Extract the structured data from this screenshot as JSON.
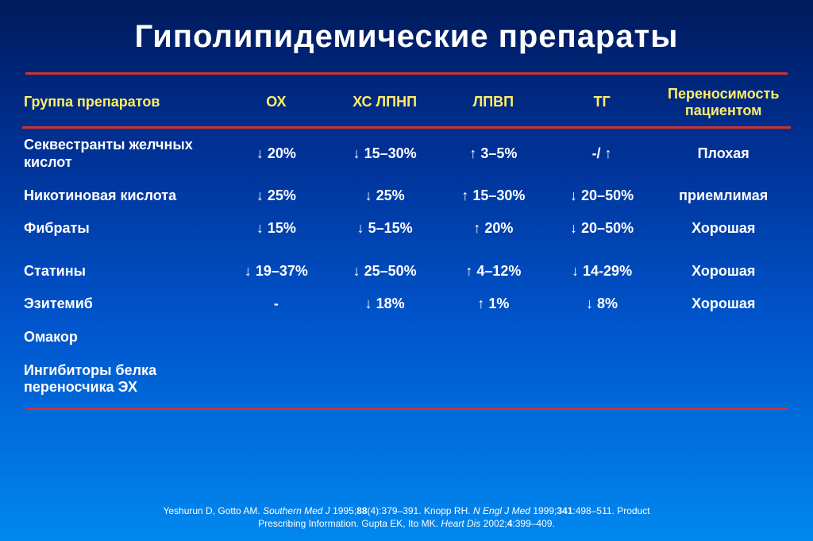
{
  "title": "Гиполипидемические  препараты",
  "headers": {
    "group": "Группа препаратов",
    "ox": "ОХ",
    "ldl": "ХС ЛПНП",
    "hdl": "ЛПВП",
    "tg": "ТГ",
    "tol": "Переносимость пациентом"
  },
  "rows": [
    {
      "group": "Секвестранты желчных кислот",
      "ox": "↓ 20%",
      "ldl": "↓ 15–30%",
      "hdl": "↑ 3–5%",
      "tg": "-/ ↑",
      "tol": "Плохая"
    },
    {
      "group": "Никотиновая кислота",
      "ox": "↓ 25%",
      "ldl": "↓ 25%",
      "hdl": "↑ 15–30%",
      "tg": "↓ 20–50%",
      "tol": "приемлимая"
    },
    {
      "group": "Фибраты",
      "ox": "↓ 15%",
      "ldl": "↓ 5–15%",
      "hdl": "↑ 20%",
      "tg": "↓ 20–50%",
      "tol": "Хорошая"
    },
    {
      "group": "Статины",
      "ox": "↓ 19–37%",
      "ldl": "↓ 25–50%",
      "hdl": "↑ 4–12%",
      "tg": "↓ 14-29%",
      "tol": "Хорошая"
    },
    {
      "group": "Эзитемиб",
      "ox": "-",
      "ldl": "↓ 18%",
      "hdl": "↑ 1%",
      "tg": "↓ 8%",
      "tol": "Хорошая"
    },
    {
      "group": "Омакор",
      "ox": "",
      "ldl": "",
      "hdl": "",
      "tg": "",
      "tol": ""
    },
    {
      "group": "Ингибиторы белка переносчика ЭХ",
      "ox": "",
      "ldl": "",
      "hdl": "",
      "tg": "",
      "tol": ""
    }
  ],
  "colors": {
    "header_text": "#ffee66",
    "rule": "#cc3333",
    "body_text": "#ffffff"
  },
  "citation": {
    "p1a": "Yeshurun D, Gotto AM. ",
    "p1i": "Southern Med J ",
    "p1b": "1995;",
    "p1v": "88",
    "p1c": "(4):379–391. Knopp RH. ",
    "p1i2": "N Engl J Med ",
    "p1d": "1999;",
    "p1v2": "341",
    "p1e": ":498–511. Product",
    "p2a": "Prescribing Information. Gupta EK, Ito MK. ",
    "p2i": "Heart Dis ",
    "p2b": "2002;",
    "p2v": "4",
    "p2c": ":399–409."
  }
}
